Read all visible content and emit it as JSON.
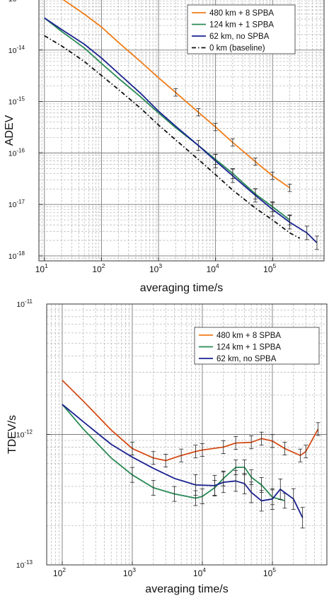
{
  "chart_data": [
    {
      "type": "line",
      "xscale": "log",
      "yscale": "log",
      "xlim": [
        8,
        800000
      ],
      "ylim": [
        8e-19,
        1e-13
      ],
      "xlabel": "averaging time/s",
      "ylabel": "ADEV",
      "x_ticks": [
        {
          "base": "10",
          "exp": "1",
          "value": 10
        },
        {
          "base": "10",
          "exp": "2",
          "value": 100
        },
        {
          "base": "10",
          "exp": "3",
          "value": 1000
        },
        {
          "base": "10",
          "exp": "4",
          "value": 10000
        },
        {
          "base": "10",
          "exp": "5",
          "value": 100000
        }
      ],
      "y_ticks": [
        {
          "base": "10",
          "exp": "-13",
          "value": 1e-13
        },
        {
          "base": "10",
          "exp": "-14",
          "value": 1e-14
        },
        {
          "base": "10",
          "exp": "-15",
          "value": 1e-15
        },
        {
          "base": "10",
          "exp": "-16",
          "value": 1e-16
        },
        {
          "base": "10",
          "exp": "-17",
          "value": 1e-17
        },
        {
          "base": "10",
          "exp": "-18",
          "value": 1e-18
        }
      ],
      "grid": true,
      "legend_position": "top-right",
      "series": [
        {
          "name": "480 km + 8 SPBA",
          "color": "#f07c18",
          "dash": "solid",
          "x": [
            10,
            20,
            50,
            100,
            200,
            500,
            1000,
            2000,
            5000,
            10000,
            20000,
            50000,
            100000,
            200000
          ],
          "y": [
            1.6e-13,
            1e-13,
            5e-14,
            2.8e-14,
            1.4e-14,
            5.8e-15,
            2.9e-15,
            1.5e-15,
            6.2e-16,
            3.2e-16,
            1.6e-16,
            6.8e-17,
            3.6e-17,
            2.1e-17
          ],
          "errorbars_from": 2000,
          "err_factor": 1.18
        },
        {
          "name": "124 km + 1 SPBA",
          "color": "#2a8a55",
          "dash": "solid",
          "x": [
            10,
            20,
            50,
            100,
            200,
            500,
            1000,
            2000,
            5000,
            10000,
            20000,
            50000,
            100000,
            200000
          ],
          "y": [
            4.2e-14,
            2.3e-14,
            1.1e-14,
            5.5e-15,
            2.8e-15,
            1.2e-15,
            6e-16,
            3.1e-16,
            1.4e-16,
            7.5e-17,
            4e-17,
            1.6e-17,
            9e-18,
            5e-18
          ],
          "errorbars_from": 5000,
          "err_factor": 1.25
        },
        {
          "name": "62 km, no SPBA",
          "color": "#1a2290",
          "dash": "solid",
          "x": [
            10,
            20,
            50,
            100,
            200,
            500,
            1000,
            2000,
            5000,
            10000,
            20000,
            50000,
            100000,
            200000,
            400000,
            600000
          ],
          "y": [
            4.2e-14,
            2.5e-14,
            1.3e-14,
            7e-15,
            3.5e-15,
            1.4e-15,
            6.5e-16,
            3.3e-16,
            1.4e-16,
            7e-17,
            3.6e-17,
            1.5e-17,
            8e-18,
            4.5e-18,
            2.8e-18,
            1.8e-18
          ],
          "errorbars_from": 10000,
          "err_factor": 1.35
        },
        {
          "name": "0 km (baseline)",
          "color": "#111111",
          "dash": "dashdot",
          "x": [
            10,
            20,
            50,
            100,
            200,
            500,
            1000,
            2000,
            5000,
            10000,
            20000,
            50000,
            100000,
            200000,
            300000
          ],
          "y": [
            1.9e-14,
            1.2e-14,
            6e-15,
            3.2e-15,
            1.7e-15,
            7.2e-16,
            3.5e-16,
            1.8e-16,
            7.5e-17,
            3.8e-17,
            1.9e-17,
            8.5e-18,
            5e-18,
            2.8e-18,
            2.2e-18
          ],
          "errorbars_from": null,
          "err_factor": 1.0
        }
      ]
    },
    {
      "type": "line",
      "xscale": "log",
      "yscale": "log",
      "xlim": [
        60,
        600000
      ],
      "ylim": [
        1e-13,
        1e-11
      ],
      "xlabel": "averaging time/s",
      "ylabel": "TDEV/s",
      "x_ticks": [
        {
          "base": "10",
          "exp": "2",
          "value": 100
        },
        {
          "base": "10",
          "exp": "3",
          "value": 1000
        },
        {
          "base": "10",
          "exp": "4",
          "value": 10000
        },
        {
          "base": "10",
          "exp": "5",
          "value": 100000
        }
      ],
      "y_ticks": [
        {
          "base": "10",
          "exp": "-11",
          "value": 1e-11
        },
        {
          "base": "10",
          "exp": "-12",
          "value": 1e-12
        },
        {
          "base": "10",
          "exp": "-13",
          "value": 1e-13
        }
      ],
      "grid": true,
      "legend_position": "top-right",
      "series": [
        {
          "name": "480 km + 8 SPBA",
          "color": "#f07c18",
          "dash": "solid",
          "overlay": "#c8341c",
          "x": [
            100,
            200,
            500,
            1000,
            2000,
            3000,
            5000,
            8000,
            10000,
            20000,
            30000,
            50000,
            70000,
            100000,
            150000,
            250000,
            300000,
            450000
          ],
          "y": [
            2.6e-12,
            1.8e-12,
            1.08e-12,
            7.8e-13,
            6.6e-13,
            6.3e-13,
            6.9e-13,
            7.4e-13,
            7.6e-13,
            8e-13,
            8.6e-13,
            8.7e-13,
            9.3e-13,
            8.9e-13,
            7.8e-13,
            6.9e-13,
            7.4e-13,
            1.1e-12
          ],
          "errorbars_from": 1000,
          "err_factor": 1.12
        },
        {
          "name": "124 km + 1 SPBA",
          "color": "#2a8a55",
          "dash": "solid",
          "x": [
            100,
            200,
            500,
            1000,
            2000,
            4000,
            8000,
            10000,
            15000,
            20000,
            30000,
            40000,
            50000,
            70000,
            100000,
            150000
          ],
          "y": [
            1.7e-12,
            1.1e-12,
            6.6e-13,
            4.9e-13,
            3.9e-13,
            3.5e-13,
            3.25e-13,
            3.35e-13,
            3.9e-13,
            4.6e-13,
            5.6e-13,
            5.6e-13,
            4.7e-13,
            4.1e-13,
            3.3e-13,
            3.1e-13
          ],
          "errorbars_from": 1000,
          "err_factor": 1.14
        },
        {
          "name": "62 km, no SPBA",
          "color": "#1a2290",
          "dash": "solid",
          "x": [
            100,
            200,
            500,
            1000,
            2000,
            4000,
            8000,
            15000,
            20000,
            30000,
            40000,
            50000,
            70000,
            100000,
            130000,
            200000,
            270000
          ],
          "y": [
            1.7e-12,
            1.25e-12,
            8.4e-13,
            6.7e-13,
            5.5e-13,
            4.6e-13,
            4.1e-13,
            4.05e-13,
            4.3e-13,
            4.4e-13,
            4.2e-13,
            3.6e-13,
            3.1e-13,
            3.2e-13,
            3.8e-13,
            3.2e-13,
            2.3e-13
          ],
          "errorbars_from": 5000,
          "err_factor": 1.2
        }
      ]
    }
  ]
}
